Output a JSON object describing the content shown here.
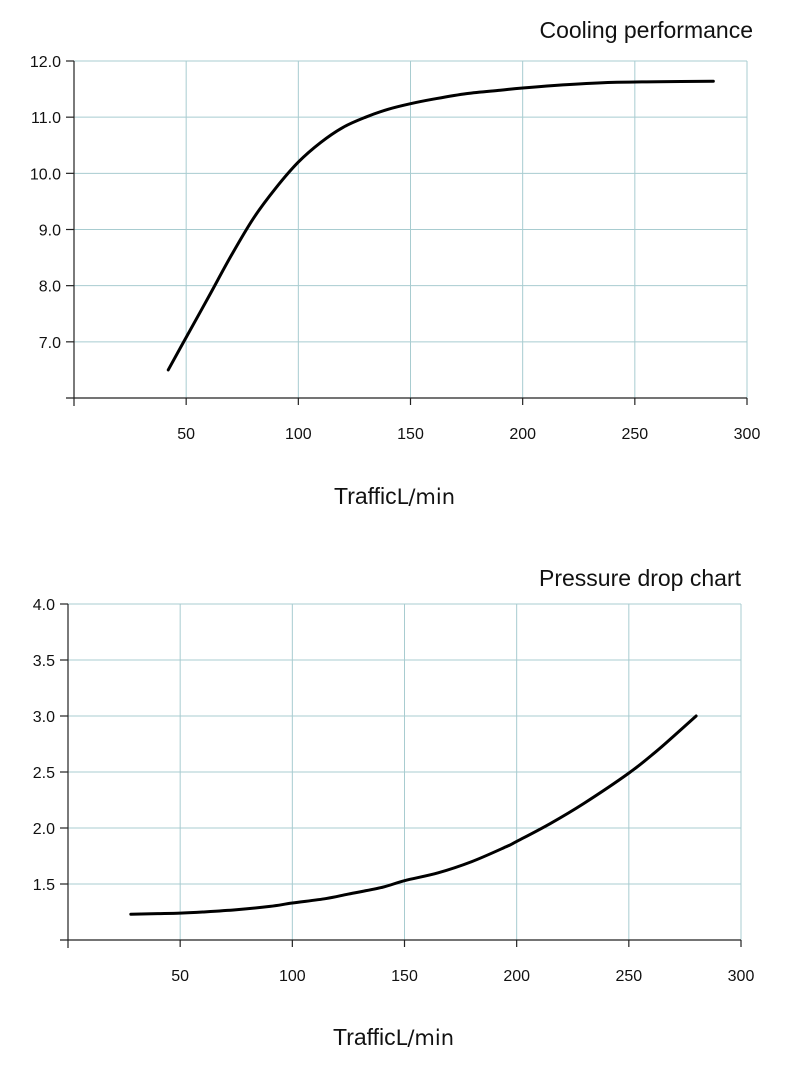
{
  "chart_data": [
    {
      "type": "line",
      "title": "Cooling performance",
      "xlabel": "Traffic",
      "xlabel_unit": "L/min",
      "ylabel": "",
      "xlim": [
        0,
        300
      ],
      "ylim": [
        6,
        12
      ],
      "x_ticks": [
        "50",
        "100",
        "150",
        "200",
        "250",
        "300"
      ],
      "y_ticks": [
        "7.0",
        "8.0",
        "9.0",
        "10.0",
        "11.0",
        "12.0"
      ],
      "grid": true,
      "legend": "none",
      "series": [
        {
          "x": [
            42,
            50,
            60,
            70,
            80,
            90,
            100,
            110,
            120,
            130,
            140,
            150,
            160,
            175,
            190,
            200,
            220,
            240,
            260,
            285
          ],
          "y": [
            6.5,
            7.08,
            7.8,
            8.53,
            9.2,
            9.74,
            10.2,
            10.55,
            10.82,
            11.0,
            11.14,
            11.24,
            11.32,
            11.42,
            11.48,
            11.52,
            11.58,
            11.62,
            11.63,
            11.64
          ]
        }
      ],
      "colors": {
        "grid": "#a8ccd0",
        "line": "#000000"
      }
    },
    {
      "type": "line",
      "title": "Pressure drop chart",
      "xlabel": "Traffic",
      "xlabel_unit": "L/min",
      "ylabel": "",
      "xlim": [
        0,
        300
      ],
      "ylim": [
        1,
        4
      ],
      "x_ticks": [
        "50",
        "100",
        "150",
        "200",
        "250",
        "300"
      ],
      "y_ticks": [
        "1.5",
        "2.0",
        "2.5",
        "3.0",
        "3.5",
        "4.0"
      ],
      "grid": true,
      "legend": "none",
      "series": [
        {
          "x": [
            28,
            40,
            50,
            60,
            75,
            90,
            100,
            115,
            125,
            140,
            150,
            165,
            180,
            195,
            200,
            215,
            230,
            250,
            262,
            270,
            280
          ],
          "y": [
            1.23,
            1.235,
            1.24,
            1.25,
            1.27,
            1.3,
            1.33,
            1.37,
            1.41,
            1.47,
            1.53,
            1.6,
            1.7,
            1.83,
            1.88,
            2.04,
            2.22,
            2.49,
            2.68,
            2.82,
            3.0
          ]
        }
      ],
      "colors": {
        "grid": "#a8ccd0",
        "line": "#000000"
      }
    }
  ]
}
